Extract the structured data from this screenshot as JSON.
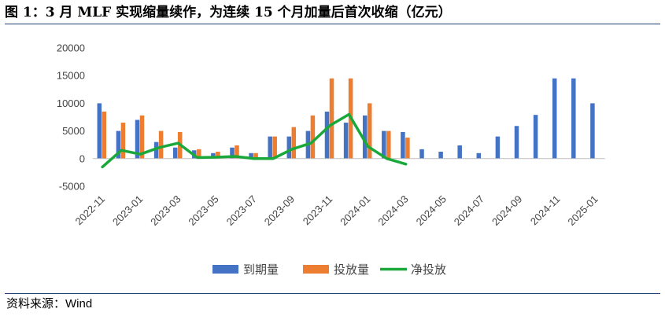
{
  "title": "图 1：3 月 MLF 实现缩量续作，为连续 15 个月加量后首次收缩（亿元）",
  "source": "资料来源：Wind",
  "chart_data": {
    "type": "bar",
    "categories": [
      "2022-11",
      "2022-12",
      "2023-01",
      "2023-02",
      "2023-03",
      "2023-04",
      "2023-05",
      "2023-06",
      "2023-07",
      "2023-08",
      "2023-09",
      "2023-10",
      "2023-11",
      "2023-12",
      "2024-01",
      "2024-02",
      "2024-03",
      "2024-04",
      "2024-05",
      "2024-06",
      "2024-07",
      "2024-08",
      "2024-09",
      "2024-10",
      "2024-11",
      "2024-12",
      "2025-01"
    ],
    "tick_labels": [
      "2022-11",
      "2023-01",
      "2023-03",
      "2023-05",
      "2023-07",
      "2023-09",
      "2023-11",
      "2024-01",
      "2024-03",
      "2024-05",
      "2024-07",
      "2024-09",
      "2024-11",
      "2025-01"
    ],
    "ylim": [
      -5000,
      20000
    ],
    "yticks": [
      -5000,
      0,
      5000,
      10000,
      15000,
      20000
    ],
    "series": [
      {
        "name": "到期量",
        "type": "bar",
        "color": "#4472c4",
        "values": [
          10000,
          5000,
          7000,
          3000,
          2000,
          1500,
          1000,
          2000,
          1000,
          4000,
          4000,
          5000,
          8500,
          6500,
          7800,
          5000,
          4800,
          1700,
          1250,
          2400,
          1000,
          4000,
          5900,
          7900,
          14500,
          14500,
          10000
        ]
      },
      {
        "name": "投放量",
        "type": "bar",
        "color": "#ed7d31",
        "values": [
          8500,
          6500,
          7800,
          5000,
          4800,
          1700,
          1250,
          2400,
          1000,
          4000,
          5700,
          7800,
          14500,
          14500,
          10000,
          5000,
          3800,
          null,
          null,
          null,
          null,
          null,
          null,
          null,
          null,
          null,
          null
        ]
      },
      {
        "name": "净投放",
        "type": "line",
        "color": "#1aa83a",
        "values": [
          -1500,
          1500,
          800,
          2000,
          2800,
          200,
          250,
          400,
          0,
          0,
          1700,
          2800,
          6000,
          8000,
          2200,
          0,
          -1000,
          null,
          null,
          null,
          null,
          null,
          null,
          null,
          null,
          null,
          null
        ]
      }
    ],
    "legend_position": "bottom",
    "grid": false
  }
}
